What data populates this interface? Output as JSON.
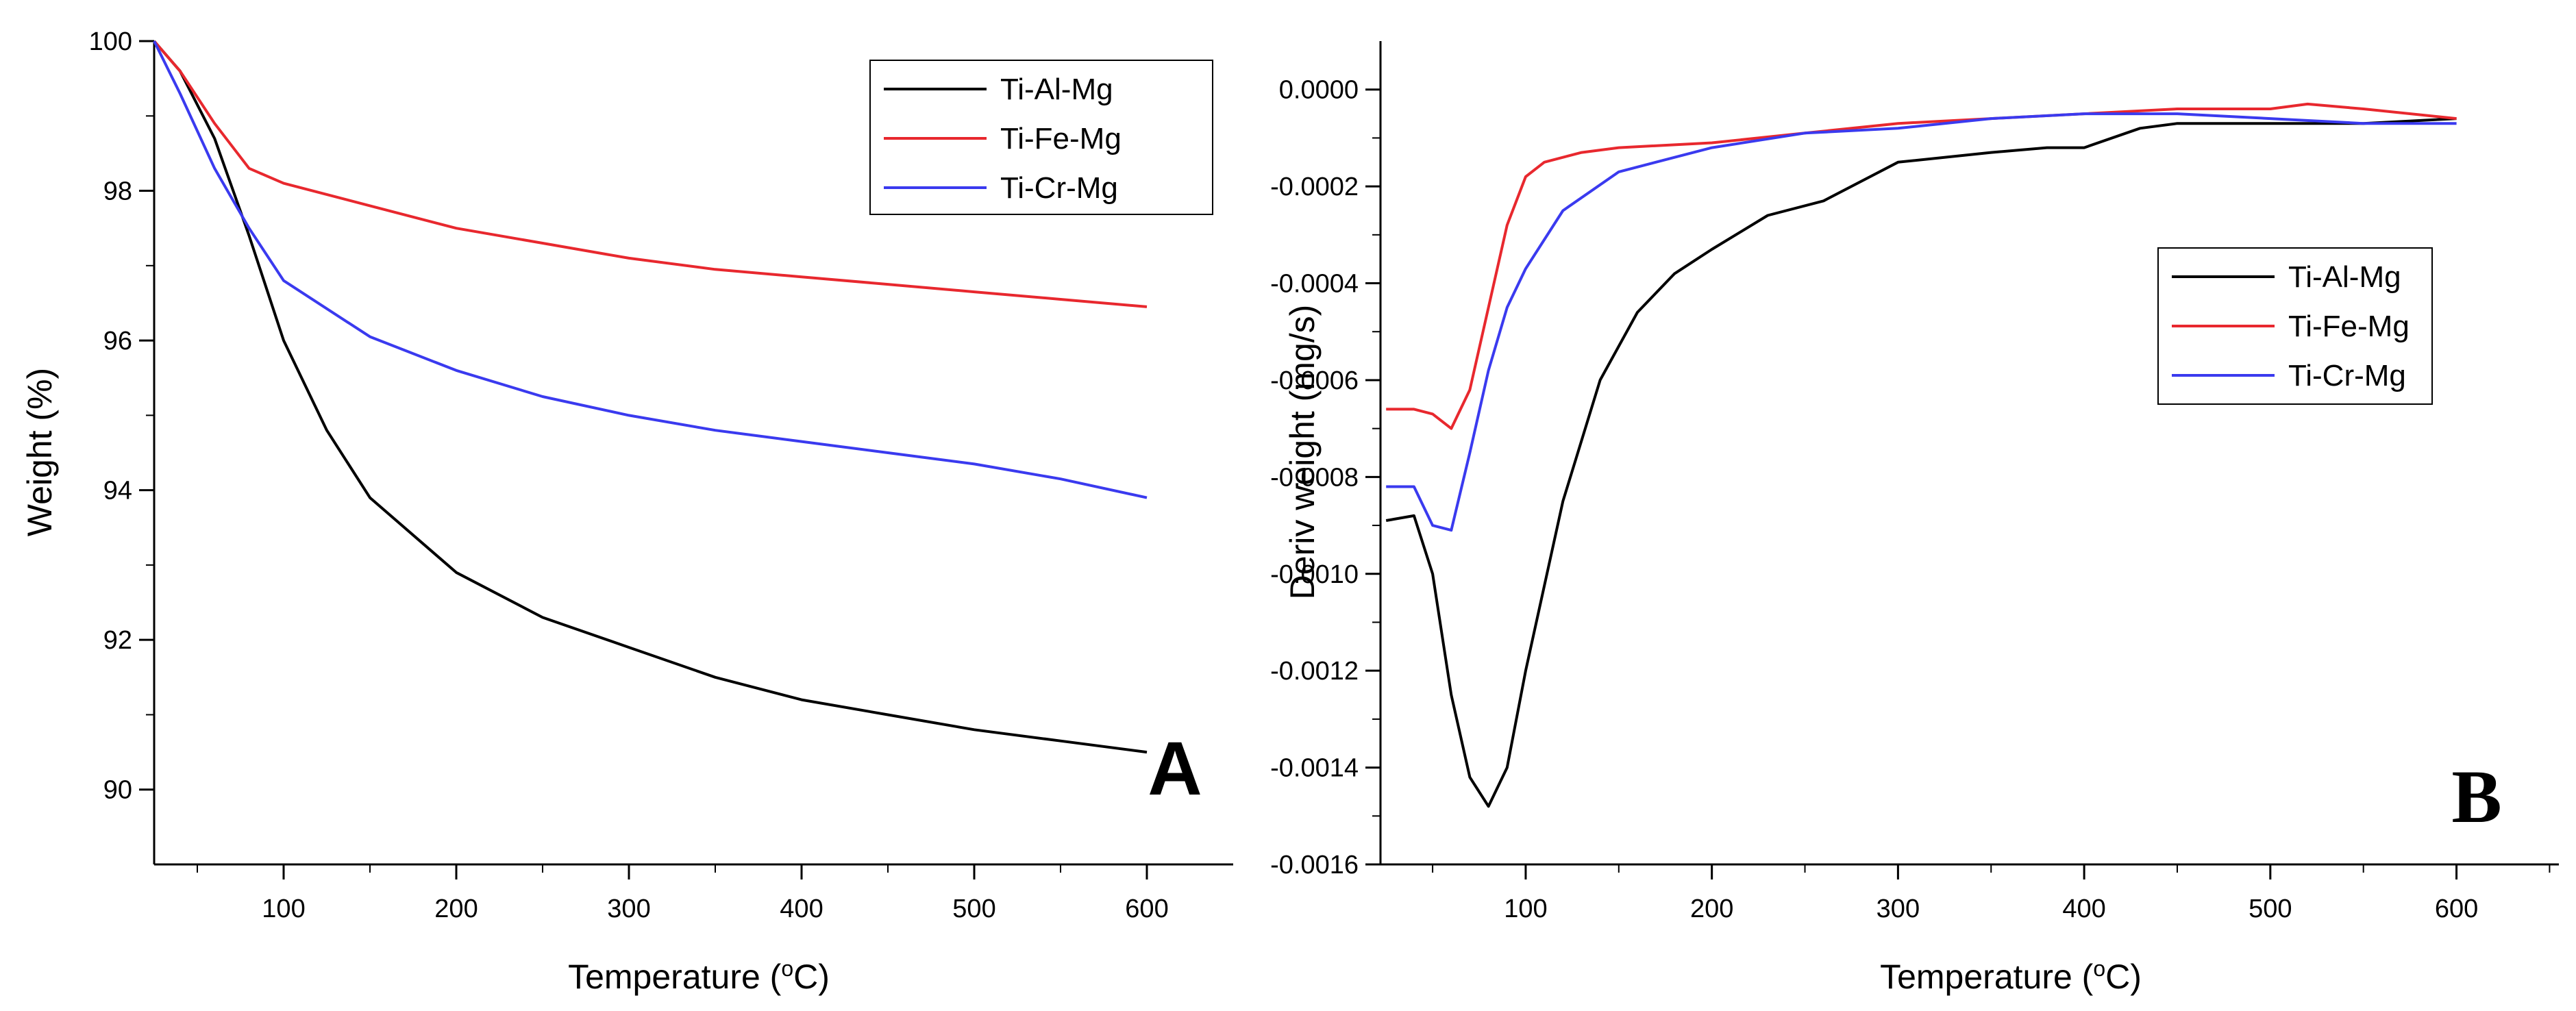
{
  "chart_data": [
    {
      "type": "line",
      "panel_label": "A",
      "title": "",
      "xlabel": "Temperature (",
      "xlabel_sup": "o",
      "xlabel_suffix": "C)",
      "ylabel": "Weight (%)",
      "xlim": [
        25,
        650
      ],
      "ylim": [
        89,
        100
      ],
      "x_ticks": [
        100,
        200,
        300,
        400,
        500,
        600
      ],
      "x_tick_labels": [
        "100",
        "200",
        "300",
        "400",
        "500",
        "600"
      ],
      "y_ticks": [
        90,
        92,
        94,
        96,
        98,
        100
      ],
      "y_tick_labels": [
        "90",
        "92",
        "94",
        "96",
        "98",
        "100"
      ],
      "legend_position": "top-right",
      "series": [
        {
          "name": "Ti-Al-Mg",
          "color": "#000000",
          "x": [
            25,
            40,
            60,
            80,
            100,
            125,
            150,
            200,
            250,
            300,
            350,
            400,
            450,
            500,
            550,
            600
          ],
          "y": [
            100,
            99.6,
            98.7,
            97.4,
            96.0,
            94.8,
            93.9,
            92.9,
            92.3,
            91.9,
            91.5,
            91.2,
            91.0,
            90.8,
            90.65,
            90.5
          ]
        },
        {
          "name": "Ti-Fe-Mg",
          "color": "#e8282e",
          "x": [
            25,
            40,
            60,
            80,
            100,
            150,
            200,
            250,
            300,
            350,
            400,
            450,
            500,
            550,
            600
          ],
          "y": [
            100,
            99.6,
            98.9,
            98.3,
            98.1,
            97.8,
            97.5,
            97.3,
            97.1,
            96.95,
            96.85,
            96.75,
            96.65,
            96.55,
            96.45
          ]
        },
        {
          "name": "Ti-Cr-Mg",
          "color": "#3a3aef",
          "x": [
            25,
            40,
            60,
            80,
            100,
            150,
            200,
            250,
            300,
            350,
            400,
            450,
            500,
            550,
            600
          ],
          "y": [
            100,
            99.3,
            98.3,
            97.5,
            96.8,
            96.05,
            95.6,
            95.25,
            95.0,
            94.8,
            94.65,
            94.5,
            94.35,
            94.15,
            93.9
          ]
        }
      ]
    },
    {
      "type": "line",
      "panel_label": "B",
      "title": "",
      "xlabel": "Temperature (",
      "xlabel_sup": "o",
      "xlabel_suffix": "C)",
      "ylabel": "Deriv weight (mg/s)",
      "xlim": [
        22,
        655
      ],
      "ylim": [
        -0.0016,
        0.0001
      ],
      "x_ticks": [
        100,
        200,
        300,
        400,
        500,
        600
      ],
      "x_tick_labels": [
        "100",
        "200",
        "300",
        "400",
        "500",
        "600"
      ],
      "y_ticks": [
        0.0,
        -0.0002,
        -0.0004,
        -0.0006,
        -0.0008,
        -0.001,
        -0.0012,
        -0.0014,
        -0.0016
      ],
      "y_tick_labels": [
        "0.0000",
        "-0.0002",
        "-0.0004",
        "-0.0006",
        "-0.0008",
        "-0.0010",
        "-0.0012",
        "-0.0014",
        "-0.0016"
      ],
      "legend_position": "center-right",
      "series": [
        {
          "name": "Ti-Al-Mg",
          "color": "#000000",
          "x": [
            25,
            40,
            50,
            60,
            70,
            80,
            90,
            100,
            120,
            140,
            160,
            180,
            200,
            230,
            260,
            300,
            350,
            380,
            400,
            430,
            450,
            500,
            550,
            600
          ],
          "y": [
            -0.00089,
            -0.00088,
            -0.001,
            -0.00125,
            -0.00142,
            -0.00148,
            -0.0014,
            -0.0012,
            -0.00085,
            -0.0006,
            -0.00046,
            -0.00038,
            -0.00033,
            -0.00026,
            -0.00023,
            -0.00015,
            -0.00013,
            -0.00012,
            -0.00012,
            -8e-05,
            -7e-05,
            -7e-05,
            -7e-05,
            -6e-05
          ]
        },
        {
          "name": "Ti-Fe-Mg",
          "color": "#e8282e",
          "x": [
            25,
            40,
            50,
            60,
            70,
            80,
            90,
            100,
            110,
            130,
            150,
            200,
            250,
            300,
            350,
            400,
            450,
            500,
            520,
            550,
            600
          ],
          "y": [
            -0.00066,
            -0.00066,
            -0.00067,
            -0.0007,
            -0.00062,
            -0.00045,
            -0.00028,
            -0.00018,
            -0.00015,
            -0.00013,
            -0.00012,
            -0.00011,
            -9e-05,
            -7e-05,
            -6e-05,
            -5e-05,
            -4e-05,
            -4e-05,
            -3e-05,
            -4e-05,
            -6e-05
          ]
        },
        {
          "name": "Ti-Cr-Mg",
          "color": "#3a3aef",
          "x": [
            25,
            40,
            50,
            60,
            70,
            80,
            90,
            100,
            120,
            150,
            200,
            250,
            300,
            350,
            400,
            450,
            500,
            550,
            600
          ],
          "y": [
            -0.00082,
            -0.00082,
            -0.0009,
            -0.00091,
            -0.00075,
            -0.00058,
            -0.00045,
            -0.00037,
            -0.00025,
            -0.00017,
            -0.00012,
            -9e-05,
            -8e-05,
            -6e-05,
            -5e-05,
            -5e-05,
            -6e-05,
            -7e-05,
            -7e-05
          ]
        }
      ]
    }
  ]
}
